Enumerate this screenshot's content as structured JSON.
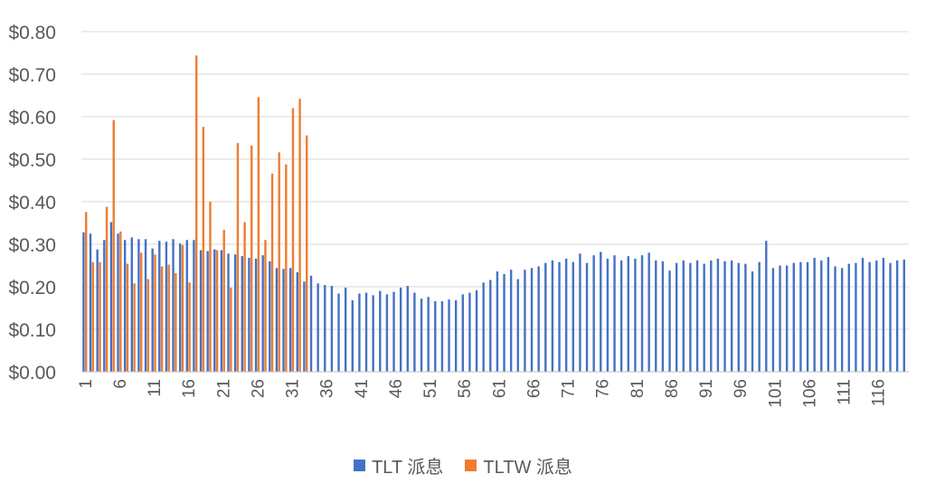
{
  "chart_data": {
    "type": "bar",
    "title": "",
    "xlabel": "",
    "ylabel": "",
    "ylim": [
      0,
      0.8
    ],
    "y_ticks": [
      "$0.00",
      "$0.10",
      "$0.20",
      "$0.30",
      "$0.40",
      "$0.50",
      "$0.60",
      "$0.70",
      "$0.80"
    ],
    "x_tick_labels": [
      "1",
      "6",
      "11",
      "16",
      "21",
      "26",
      "31",
      "36",
      "41",
      "46",
      "51",
      "56",
      "61",
      "66",
      "71",
      "76",
      "81",
      "86",
      "91",
      "96",
      "101",
      "106",
      "111",
      "116"
    ],
    "categories_count": 120,
    "grid": "horizontal",
    "legend_position": "bottom",
    "series": [
      {
        "name": "TLT 派息",
        "color": "#4472C4",
        "values": [
          0.328,
          0.325,
          0.288,
          0.31,
          0.352,
          0.325,
          0.31,
          0.316,
          0.312,
          0.312,
          0.29,
          0.308,
          0.306,
          0.312,
          0.302,
          0.31,
          0.31,
          0.286,
          0.284,
          0.288,
          0.286,
          0.278,
          0.276,
          0.272,
          0.268,
          0.266,
          0.274,
          0.26,
          0.244,
          0.242,
          0.244,
          0.234,
          0.212,
          0.226,
          0.208,
          0.204,
          0.202,
          0.184,
          0.198,
          0.168,
          0.184,
          0.186,
          0.18,
          0.19,
          0.182,
          0.188,
          0.198,
          0.202,
          0.186,
          0.172,
          0.176,
          0.166,
          0.166,
          0.17,
          0.168,
          0.182,
          0.186,
          0.192,
          0.21,
          0.216,
          0.236,
          0.23,
          0.24,
          0.218,
          0.24,
          0.244,
          0.248,
          0.256,
          0.262,
          0.258,
          0.266,
          0.258,
          0.278,
          0.256,
          0.274,
          0.282,
          0.266,
          0.274,
          0.262,
          0.272,
          0.266,
          0.274,
          0.28,
          0.262,
          0.26,
          0.238,
          0.256,
          0.262,
          0.256,
          0.262,
          0.254,
          0.262,
          0.266,
          0.26,
          0.262,
          0.256,
          0.254,
          0.236,
          0.258,
          0.308,
          0.244,
          0.25,
          0.25,
          0.256,
          0.258,
          0.258,
          0.268,
          0.262,
          0.27,
          0.248,
          0.244,
          0.254,
          0.256,
          0.268,
          0.258,
          0.262,
          0.268,
          0.256,
          0.262,
          0.264
        ]
      },
      {
        "name": "TLTW 派息",
        "color": "#ED7D31",
        "values": [
          0.376,
          0.258,
          0.258,
          0.388,
          0.592,
          0.33,
          0.254,
          0.208,
          0.28,
          0.218,
          0.276,
          0.248,
          0.252,
          0.232,
          0.298,
          0.21,
          0.744,
          0.576,
          0.4,
          0.286,
          0.334,
          0.198,
          0.538,
          0.352,
          0.532,
          0.646,
          0.31,
          0.466,
          0.516,
          0.488,
          0.62,
          0.642,
          0.556
        ]
      }
    ]
  },
  "legend": {
    "item1": {
      "label": "TLT 派息",
      "color": "#4472C4"
    },
    "item2": {
      "label": "TLTW 派息",
      "color": "#ED7D31"
    }
  }
}
